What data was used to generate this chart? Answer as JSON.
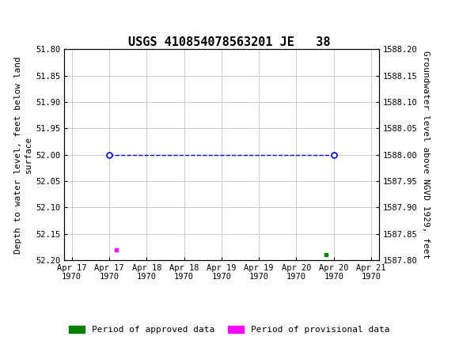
{
  "title": "USGS 410854078563201 JE   38",
  "ylabel_left": "Depth to water level, feet below land\nsurface",
  "ylabel_right": "Groundwater level above NGVD 1929, feet",
  "ylim_left": [
    52.2,
    51.8
  ],
  "ylim_right": [
    1587.8,
    1588.2
  ],
  "yticks_left": [
    51.8,
    51.85,
    51.9,
    51.95,
    52.0,
    52.05,
    52.1,
    52.15,
    52.2
  ],
  "yticks_right": [
    1587.8,
    1587.85,
    1587.9,
    1587.95,
    1588.0,
    1588.05,
    1588.1,
    1588.15,
    1588.2
  ],
  "xtick_positions": [
    0,
    0.5,
    1.0,
    1.5,
    2.0,
    2.5,
    3.0,
    3.5,
    4.0
  ],
  "xtick_labels": [
    "Apr 17\n1970",
    "Apr 17\n1970",
    "Apr 18\n1970",
    "Apr 18\n1970",
    "Apr 19\n1970",
    "Apr 19\n1970",
    "Apr 20\n1970",
    "Apr 20\n1970",
    "Apr 21\n1970"
  ],
  "xlim": [
    -0.1,
    4.1
  ],
  "line_x": [
    0.5,
    3.5
  ],
  "line_y": [
    52.0,
    52.0
  ],
  "line_color": "#0000cc",
  "line_style": "dashed",
  "marker_facecolor": "white",
  "marker_edgecolor": "#0000cc",
  "provisional_x": 0.6,
  "provisional_y": 52.18,
  "provisional_color": "#ff00ff",
  "approved_x": 3.4,
  "approved_y": 52.19,
  "approved_color": "#008000",
  "header_color": "#006633",
  "grid_color": "#cccccc",
  "background_color": "white",
  "title_fontsize": 11,
  "axis_label_fontsize": 8,
  "tick_fontsize": 7.5,
  "legend_fontsize": 8,
  "legend_label_approved": "Period of approved data",
  "legend_label_provisional": "Period of provisional data"
}
